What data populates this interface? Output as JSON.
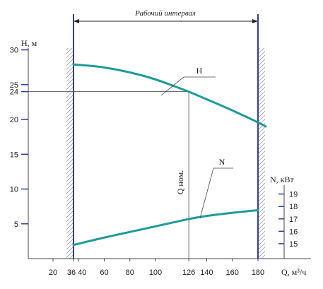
{
  "chart_data": {
    "type": "line",
    "title": "",
    "interval_label": "Рабочий интервал",
    "xlabel": "Q, м³/ч",
    "ylabel_left": "H, м",
    "ylabel_right": "N, кВт",
    "x_ticks": [
      "20",
      "36",
      "40",
      "60",
      "80",
      "100",
      "126",
      "140",
      "160",
      "180"
    ],
    "x_tick_values": [
      20,
      36,
      40,
      60,
      80,
      100,
      126,
      140,
      160,
      180
    ],
    "y_left_ticks": [
      "30",
      "25",
      "24",
      "20",
      "15",
      "10",
      "5"
    ],
    "y_left_tick_values": [
      30,
      25,
      24,
      20,
      15,
      10,
      5
    ],
    "y_right_ticks": [
      "19",
      "18",
      "17",
      "16",
      "15"
    ],
    "y_right_tick_values": [
      19,
      18,
      17,
      16,
      15
    ],
    "xlim": [
      0,
      190
    ],
    "ylim_left": [
      0,
      33
    ],
    "ylim_right": [
      13.8,
      20.4
    ],
    "grid": false,
    "working_interval": [
      36,
      180
    ],
    "nominal": {
      "label": "Q ном.",
      "q": 126,
      "h": 24
    },
    "series": [
      {
        "name": "H",
        "axis": "left",
        "color": "#1f9a9a",
        "x": [
          36,
          50,
          60,
          80,
          100,
          120,
          126,
          140,
          160,
          180,
          186
        ],
        "y": [
          27.9,
          27.7,
          27.5,
          26.8,
          25.8,
          24.4,
          24.0,
          22.9,
          21.3,
          19.6,
          19.0
        ]
      },
      {
        "name": "N",
        "axis": "right",
        "color": "#1f9a9a",
        "x": [
          36,
          40,
          60,
          80,
          100,
          120,
          126,
          140,
          160,
          180
        ],
        "y": [
          14.9,
          15.0,
          15.5,
          15.95,
          16.4,
          16.85,
          17.0,
          17.25,
          17.5,
          17.7
        ]
      }
    ]
  }
}
